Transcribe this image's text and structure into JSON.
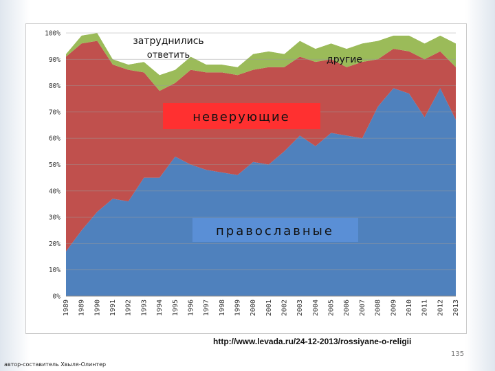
{
  "chart_data": {
    "type": "area",
    "stacked": true,
    "categories": [
      "1989",
      "1989",
      "1990",
      "1991",
      "1992",
      "1993",
      "1994",
      "1995",
      "1996",
      "1997",
      "1998",
      "1999",
      "2000",
      "2001",
      "2002",
      "2003",
      "2004",
      "2005",
      "2006",
      "2007",
      "2008",
      "2009",
      "2010",
      "2011",
      "2012",
      "2013"
    ],
    "series": [
      {
        "name": "православные",
        "color": "#4f81bd",
        "values": [
          17,
          25,
          32,
          37,
          36,
          45,
          45,
          53,
          50,
          48,
          47,
          46,
          51,
          50,
          55,
          61,
          57,
          62,
          61,
          60,
          72,
          79,
          77,
          68,
          79,
          67
        ]
      },
      {
        "name": "неверующие",
        "color": "#c0504d",
        "values": [
          74,
          71,
          65,
          51,
          50,
          40,
          33,
          28,
          36,
          37,
          38,
          38,
          35,
          37,
          32,
          30,
          32,
          28,
          26,
          29,
          18,
          15,
          16,
          22,
          14,
          20
        ]
      },
      {
        "name": "другие",
        "color": "#9bbb59",
        "values": [
          1,
          3,
          3,
          2,
          2,
          4,
          6,
          5,
          5,
          3,
          3,
          3,
          6,
          6,
          5,
          6,
          5,
          6,
          7,
          7,
          7,
          5,
          6,
          6,
          6,
          9
        ]
      },
      {
        "name": "затруднились ответить",
        "color": "#ffffff",
        "values": [
          8,
          1,
          0,
          10,
          12,
          11,
          16,
          14,
          9,
          12,
          12,
          13,
          8,
          7,
          8,
          3,
          6,
          4,
          6,
          4,
          3,
          1,
          1,
          4,
          1,
          4
        ]
      }
    ],
    "ylim": [
      0,
      100
    ],
    "yticks": [
      "0%",
      "10%",
      "20%",
      "30%",
      "40%",
      "50%",
      "60%",
      "70%",
      "80%",
      "90%",
      "100%"
    ],
    "grid": true,
    "annotations": {
      "orthodox": "православные",
      "nonbelievers": "неверующие",
      "undecided_line1": "затруднились",
      "undecided_line2": "ответить",
      "others": "другие"
    }
  },
  "source_url": "http://www.levada.ru/24-12-2013/rossiyane-o-religii",
  "page_number": "135",
  "author": "автор-составитель Хвыля-Олинтер"
}
